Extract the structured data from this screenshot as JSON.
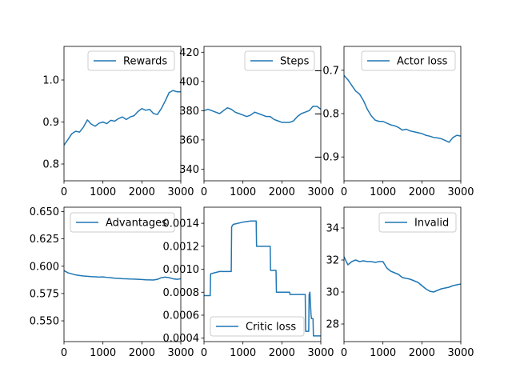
{
  "chart_data": [
    {
      "type": "line",
      "title": "",
      "xlabel": "",
      "ylabel": "",
      "xlim": [
        0,
        3000
      ],
      "ylim": [
        0.76,
        1.08
      ],
      "xticks": [
        0,
        1000,
        2000,
        3000
      ],
      "yticks": [
        0.8,
        0.9,
        1.0
      ],
      "ytick_labels": [
        "0.8",
        "0.9",
        "1.0"
      ],
      "grid": false,
      "legend_position": "upper right",
      "series": [
        {
          "name": "Rewards",
          "color": "#1f77b4",
          "x": [
            0,
            100,
            200,
            300,
            400,
            500,
            600,
            700,
            800,
            900,
            1000,
            1100,
            1200,
            1300,
            1400,
            1500,
            1600,
            1700,
            1800,
            1900,
            2000,
            2100,
            2200,
            2300,
            2400,
            2500,
            2600,
            2700,
            2800,
            2900,
            3000
          ],
          "y": [
            0.845,
            0.858,
            0.872,
            0.878,
            0.876,
            0.888,
            0.905,
            0.895,
            0.89,
            0.897,
            0.9,
            0.896,
            0.904,
            0.902,
            0.908,
            0.912,
            0.906,
            0.912,
            0.915,
            0.925,
            0.932,
            0.928,
            0.93,
            0.92,
            0.918,
            0.932,
            0.95,
            0.97,
            0.975,
            0.972,
            0.972
          ]
        }
      ]
    },
    {
      "type": "line",
      "title": "",
      "xlabel": "",
      "ylabel": "",
      "xlim": [
        0,
        3000
      ],
      "ylim": [
        332,
        424
      ],
      "xticks": [
        0,
        1000,
        2000,
        3000
      ],
      "yticks": [
        340,
        360,
        380,
        400,
        420
      ],
      "ytick_labels": [
        "340",
        "360",
        "380",
        "400",
        "420"
      ],
      "grid": false,
      "legend_position": "upper right",
      "series": [
        {
          "name": "Steps",
          "color": "#1f77b4",
          "x": [
            0,
            100,
            200,
            300,
            400,
            500,
            600,
            700,
            800,
            900,
            1000,
            1100,
            1200,
            1300,
            1400,
            1500,
            1600,
            1700,
            1800,
            1900,
            2000,
            2100,
            2200,
            2300,
            2400,
            2500,
            2600,
            2700,
            2800,
            2900,
            3000
          ],
          "y": [
            380,
            381,
            380,
            379,
            378,
            380,
            382,
            381,
            379,
            378,
            377,
            376,
            377,
            379,
            378,
            377,
            376,
            376,
            374,
            373,
            372,
            372,
            372,
            373,
            376,
            378,
            379,
            380,
            383,
            383,
            381
          ]
        }
      ]
    },
    {
      "type": "line",
      "title": "",
      "xlabel": "",
      "ylabel": "",
      "xlim": [
        0,
        3000
      ],
      "ylim": [
        -0.955,
        -0.645
      ],
      "xticks": [
        0,
        1000,
        2000,
        3000
      ],
      "yticks": [
        -0.9,
        -0.8,
        -0.7
      ],
      "ytick_labels": [
        "−0.9",
        "−0.8",
        "−0.7"
      ],
      "grid": false,
      "legend_position": "upper right",
      "series": [
        {
          "name": "Actor loss",
          "color": "#1f77b4",
          "x": [
            0,
            100,
            200,
            300,
            400,
            500,
            600,
            700,
            800,
            900,
            1000,
            1100,
            1200,
            1300,
            1400,
            1500,
            1600,
            1700,
            1800,
            1900,
            2000,
            2100,
            2200,
            2300,
            2400,
            2500,
            2600,
            2700,
            2800,
            2900,
            3000
          ],
          "y": [
            -0.712,
            -0.722,
            -0.735,
            -0.748,
            -0.755,
            -0.77,
            -0.79,
            -0.805,
            -0.815,
            -0.818,
            -0.818,
            -0.822,
            -0.826,
            -0.828,
            -0.832,
            -0.838,
            -0.836,
            -0.84,
            -0.842,
            -0.844,
            -0.846,
            -0.85,
            -0.852,
            -0.855,
            -0.856,
            -0.858,
            -0.862,
            -0.866,
            -0.855,
            -0.85,
            -0.852
          ]
        }
      ]
    },
    {
      "type": "line",
      "title": "",
      "xlabel": "",
      "ylabel": "",
      "xlim": [
        0,
        3000
      ],
      "ylim": [
        0.531,
        0.654
      ],
      "xticks": [
        0,
        1000,
        2000,
        3000
      ],
      "yticks": [
        0.55,
        0.575,
        0.6,
        0.625,
        0.65
      ],
      "ytick_labels": [
        "0.550",
        "0.575",
        "0.600",
        "0.625",
        "0.650"
      ],
      "grid": false,
      "legend_position": "upper right",
      "series": [
        {
          "name": "Advantages",
          "color": "#1f77b4",
          "x": [
            0,
            100,
            200,
            300,
            400,
            500,
            600,
            700,
            800,
            900,
            1000,
            1100,
            1200,
            1300,
            1400,
            1500,
            1600,
            1700,
            1800,
            1900,
            2000,
            2100,
            2200,
            2300,
            2400,
            2500,
            2600,
            2700,
            2800,
            2900,
            3000
          ],
          "y": [
            0.596,
            0.594,
            0.593,
            0.592,
            0.5915,
            0.591,
            0.5908,
            0.5905,
            0.5903,
            0.59,
            0.5902,
            0.5898,
            0.5895,
            0.589,
            0.5888,
            0.5886,
            0.5885,
            0.5883,
            0.5882,
            0.588,
            0.5878,
            0.5876,
            0.5875,
            0.5874,
            0.588,
            0.5895,
            0.59,
            0.5895,
            0.5885,
            0.588,
            0.5885
          ]
        }
      ]
    },
    {
      "type": "line",
      "title": "",
      "xlabel": "",
      "ylabel": "",
      "xlim": [
        0,
        3000
      ],
      "ylim": [
        0.00037,
        0.00154
      ],
      "xticks": [
        0,
        1000,
        2000,
        3000
      ],
      "yticks": [
        0.0004,
        0.0006,
        0.0008,
        0.001,
        0.0012,
        0.0014
      ],
      "ytick_labels": [
        "0.0004",
        "0.0006",
        "0.0008",
        "0.0010",
        "0.0012",
        "0.0014"
      ],
      "grid": false,
      "legend_position": "lower right",
      "series": [
        {
          "name": "Critic loss",
          "color": "#1f77b4",
          "x": [
            0,
            160,
            170,
            400,
            700,
            710,
            750,
            1000,
            1200,
            1340,
            1350,
            1700,
            1710,
            1750,
            1850,
            1860,
            2200,
            2210,
            2600,
            2610,
            2690,
            2700,
            2720,
            2750,
            2760,
            2800,
            2810,
            3000
          ],
          "y": [
            0.00077,
            0.00077,
            0.00096,
            0.00098,
            0.00098,
            0.00137,
            0.00139,
            0.00141,
            0.00142,
            0.00142,
            0.0012,
            0.0012,
            0.00099,
            0.00099,
            0.00099,
            0.0008,
            0.0008,
            0.00078,
            0.00078,
            0.00046,
            0.00046,
            0.00078,
            0.0008,
            0.0006,
            0.00057,
            0.00057,
            0.00042,
            0.00042
          ]
        }
      ]
    },
    {
      "type": "line",
      "title": "",
      "xlabel": "",
      "ylabel": "",
      "xlim": [
        0,
        3000
      ],
      "ylim": [
        26.9,
        35.3
      ],
      "xticks": [
        0,
        1000,
        2000,
        3000
      ],
      "yticks": [
        28,
        30,
        32,
        34
      ],
      "ytick_labels": [
        "28",
        "30",
        "32",
        "34"
      ],
      "grid": false,
      "legend_position": "upper right",
      "series": [
        {
          "name": "Invalid",
          "color": "#1f77b4",
          "x": [
            0,
            100,
            200,
            300,
            400,
            500,
            600,
            700,
            800,
            900,
            1000,
            1100,
            1200,
            1300,
            1400,
            1500,
            1600,
            1700,
            1800,
            1900,
            2000,
            2100,
            2200,
            2300,
            2400,
            2500,
            2600,
            2700,
            2800,
            2900,
            3000
          ],
          "y": [
            32.2,
            31.7,
            31.9,
            32.0,
            31.9,
            31.95,
            31.9,
            31.9,
            31.85,
            31.9,
            31.9,
            31.5,
            31.3,
            31.2,
            31.1,
            30.9,
            30.85,
            30.8,
            30.7,
            30.6,
            30.4,
            30.2,
            30.05,
            30.0,
            30.1,
            30.2,
            30.25,
            30.3,
            30.4,
            30.45,
            30.5
          ]
        }
      ]
    }
  ]
}
